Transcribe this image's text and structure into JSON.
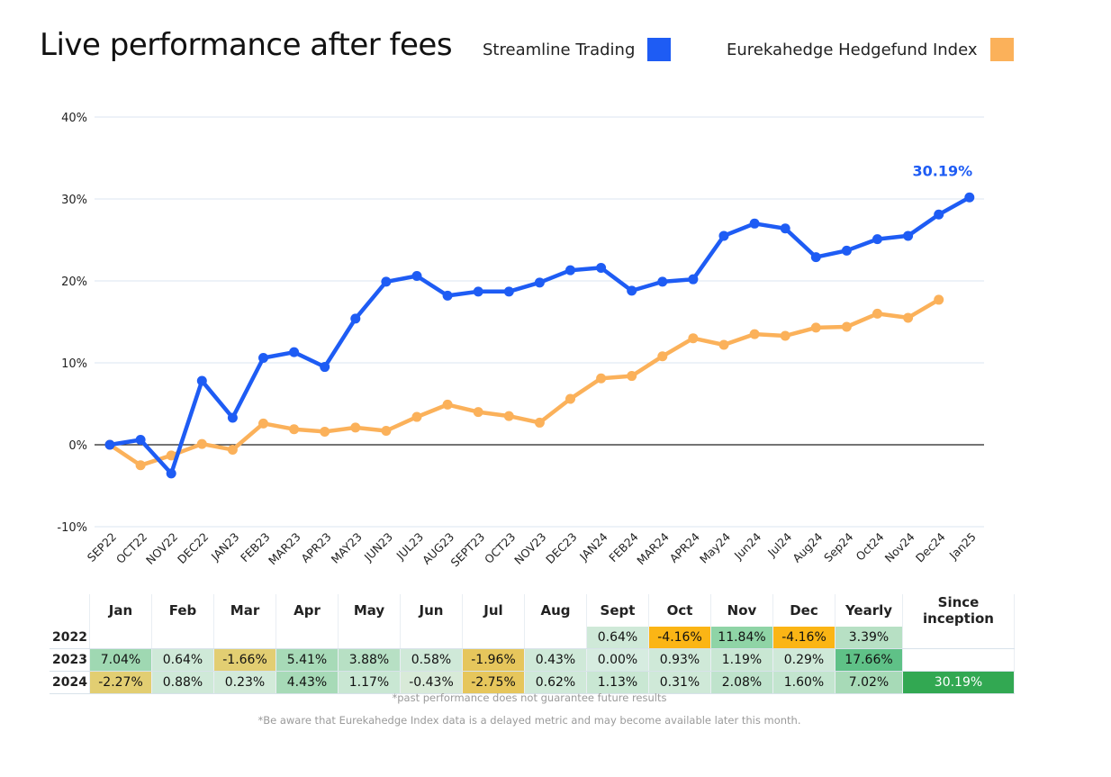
{
  "header": {
    "title": "Live performance after fees"
  },
  "legend": [
    {
      "label": "Streamline Trading",
      "color": "#1e5cf4"
    },
    {
      "label": "Eurekahedge Hedgefund Index",
      "color": "#fbb15a"
    }
  ],
  "chart_data": {
    "type": "line",
    "categories": [
      "SEP22",
      "OCT22",
      "NOV22",
      "DEC22",
      "JAN23",
      "FEB23",
      "MAR23",
      "APR23",
      "MAY23",
      "JUN23",
      "JUL23",
      "AUG23",
      "SEPT23",
      "OCT23",
      "NOV23",
      "DEC23",
      "JAN24",
      "FEB24",
      "MAR24",
      "APR24",
      "May24",
      "Jun24",
      "Jul24",
      "Aug24",
      "Sep24",
      "Oct24",
      "Nov24",
      "Dec24",
      "Jan25"
    ],
    "y_ticks": [
      -10,
      0,
      10,
      20,
      30,
      40
    ],
    "y_tick_labels": [
      "-10%",
      "0%",
      "10%",
      "20%",
      "30%",
      "40%"
    ],
    "ylim": [
      -10,
      40
    ],
    "grid": true,
    "series": [
      {
        "name": "Streamline Trading",
        "color": "#1e5cf4",
        "values": [
          0,
          0.6,
          -3.5,
          7.8,
          3.3,
          10.6,
          11.3,
          9.5,
          15.4,
          19.9,
          20.6,
          18.2,
          18.7,
          18.7,
          19.8,
          21.3,
          21.6,
          18.8,
          19.9,
          20.2,
          25.5,
          27.0,
          26.4,
          22.9,
          23.7,
          25.1,
          25.5,
          28.1,
          30.19
        ],
        "end_label": "30.19%"
      },
      {
        "name": "Eurekahedge Hedgefund Index",
        "color": "#fbb15a",
        "values": [
          0,
          -2.5,
          -1.3,
          0.1,
          -0.6,
          2.6,
          1.9,
          1.6,
          2.1,
          1.7,
          3.4,
          4.9,
          4.0,
          3.5,
          2.7,
          5.6,
          8.1,
          8.4,
          10.8,
          13.0,
          12.2,
          13.5,
          13.3,
          14.3,
          14.4,
          16.0,
          15.5,
          17.7,
          null
        ]
      }
    ]
  },
  "table": {
    "headers": [
      "",
      "Jan",
      "Feb",
      "Mar",
      "Apr",
      "May",
      "Jun",
      "Jul",
      "Aug",
      "Sept",
      "Oct",
      "Nov",
      "Dec",
      "Yearly",
      "Since inception"
    ],
    "rows": [
      {
        "year": "2022",
        "cells": [
          "",
          "",
          "",
          "",
          "",
          "",
          "",
          "",
          "0.64%",
          "-4.16%",
          "11.84%",
          "-4.16%",
          "3.39%",
          ""
        ]
      },
      {
        "year": "2023",
        "cells": [
          "7.04%",
          "0.64%",
          "-1.66%",
          "5.41%",
          "3.88%",
          "0.58%",
          "-1.96%",
          "0.43%",
          "0.00%",
          "0.93%",
          "1.19%",
          "0.29%",
          "17.66%",
          ""
        ]
      },
      {
        "year": "2024",
        "cells": [
          "-2.27%",
          "0.88%",
          "0.23%",
          "4.43%",
          "1.17%",
          "-0.43%",
          "-2.75%",
          "0.62%",
          "1.13%",
          "0.31%",
          "2.08%",
          "1.60%",
          "7.02%",
          "30.19%"
        ]
      }
    ],
    "cell_colors": [
      [
        "",
        "",
        "",
        "",
        "",
        "",
        "",
        "",
        "#cfe9d8",
        "#fbb515",
        "#8fd4a6",
        "#fbb515",
        "#b7e0c4",
        ""
      ],
      [
        "#9fd8b2",
        "#cfe9d8",
        "#e2ce72",
        "#a7dab7",
        "#b7e0c4",
        "#cfe9d8",
        "#e6c65c",
        "#cfe9d8",
        "#d6ece0",
        "#cfe9d8",
        "#c9e7d3",
        "#cfe9d8",
        "#5fc187",
        ""
      ],
      [
        "#e2ce72",
        "#cfe9d8",
        "#d2ead9",
        "#a7dab7",
        "#c9e7d3",
        "#d8ead8",
        "#e6c65c",
        "#cfe9d8",
        "#c9e7d3",
        "#cfe9d8",
        "#bfe3cc",
        "#c3e5cf",
        "#a7dab7",
        "#32a852"
      ]
    ]
  },
  "notes": {
    "disclaimer": "*past performance does not guarantee future results",
    "delay_notice": "*Be aware that Eurekahedge Index data is a delayed metric and may become available later this month."
  }
}
